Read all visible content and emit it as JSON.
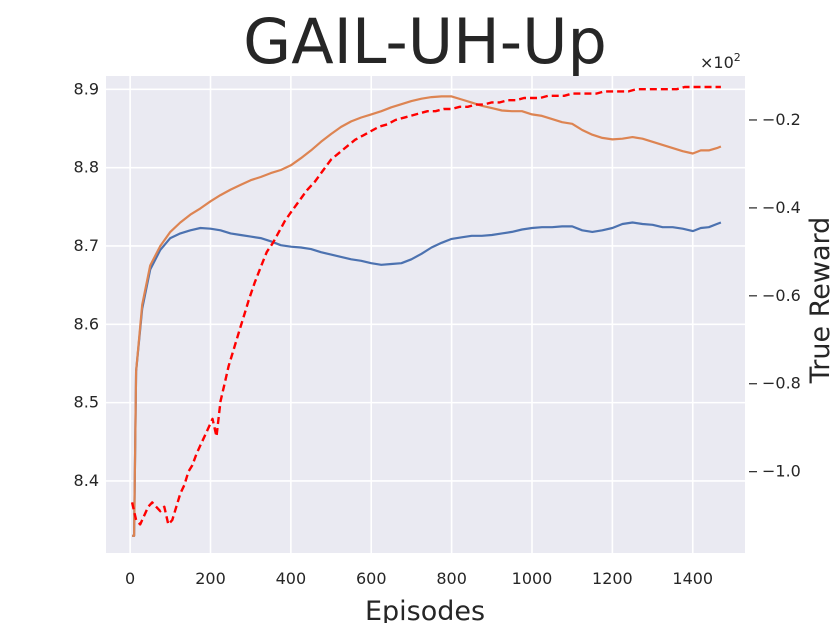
{
  "chart_data": {
    "type": "line",
    "title": "GAIL-UH-Up",
    "xlabel": "Episodes",
    "ylabel": "",
    "y2label": "True Reward",
    "y2_multiplier": "×10",
    "y2_multiplier_exp": "2",
    "xlim": [
      -60,
      1530
    ],
    "ylim": [
      8.308,
      8.917
    ],
    "y2lim": [
      -1.185,
      -0.1
    ],
    "xticks": [
      0,
      200,
      400,
      600,
      800,
      1000,
      1200,
      1400
    ],
    "xtick_labels": [
      "0",
      "200",
      "400",
      "600",
      "800",
      "1000",
      "1200",
      "1400"
    ],
    "yticks": [
      8.4,
      8.5,
      8.6,
      8.7,
      8.8,
      8.9
    ],
    "ytick_labels": [
      "8.4",
      "8.5",
      "8.6",
      "8.7",
      "8.8",
      "8.9"
    ],
    "y2ticks": [
      -1.0,
      -0.8,
      -0.6,
      -0.4,
      -0.2
    ],
    "y2tick_labels": [
      "−1.0",
      "−0.8",
      "−0.6",
      "−0.4",
      "−0.2"
    ],
    "grid": true,
    "colors": {
      "background": "#eaeaf2",
      "grid": "#ffffff",
      "blue": "#4c72b0",
      "orange": "#dd8452",
      "red": "#ff0000"
    },
    "series": [
      {
        "axis": "left",
        "color": "#4c72b0",
        "style": "solid",
        "x": [
          5,
          10,
          15,
          30,
          50,
          75,
          100,
          125,
          150,
          175,
          200,
          225,
          250,
          275,
          300,
          325,
          350,
          375,
          400,
          425,
          450,
          475,
          500,
          525,
          550,
          575,
          600,
          625,
          650,
          675,
          700,
          725,
          750,
          775,
          800,
          825,
          850,
          875,
          900,
          925,
          950,
          975,
          1000,
          1025,
          1050,
          1075,
          1100,
          1125,
          1150,
          1175,
          1200,
          1225,
          1250,
          1275,
          1300,
          1325,
          1350,
          1375,
          1400,
          1420,
          1440,
          1460,
          1470
        ],
        "y": [
          8.33,
          8.33,
          8.54,
          8.62,
          8.67,
          8.695,
          8.71,
          8.716,
          8.72,
          8.723,
          8.722,
          8.72,
          8.716,
          8.714,
          8.712,
          8.71,
          8.706,
          8.701,
          8.699,
          8.698,
          8.696,
          8.692,
          8.689,
          8.686,
          8.683,
          8.681,
          8.678,
          8.676,
          8.677,
          8.678,
          8.683,
          8.69,
          8.698,
          8.704,
          8.709,
          8.711,
          8.713,
          8.713,
          8.714,
          8.716,
          8.718,
          8.721,
          8.723,
          8.724,
          8.724,
          8.725,
          8.725,
          8.72,
          8.718,
          8.72,
          8.723,
          8.728,
          8.73,
          8.728,
          8.727,
          8.724,
          8.724,
          8.722,
          8.719,
          8.723,
          8.724,
          8.728,
          8.73
        ]
      },
      {
        "axis": "left",
        "color": "#dd8452",
        "style": "solid",
        "x": [
          5,
          10,
          15,
          30,
          50,
          75,
          100,
          125,
          150,
          175,
          200,
          225,
          250,
          275,
          300,
          325,
          350,
          375,
          400,
          425,
          450,
          475,
          500,
          525,
          550,
          575,
          600,
          625,
          650,
          675,
          700,
          725,
          750,
          775,
          800,
          825,
          850,
          875,
          900,
          925,
          950,
          975,
          1000,
          1025,
          1050,
          1075,
          1100,
          1125,
          1150,
          1175,
          1200,
          1225,
          1250,
          1275,
          1300,
          1325,
          1350,
          1375,
          1400,
          1420,
          1440,
          1460,
          1470
        ],
        "y": [
          8.33,
          8.33,
          8.54,
          8.625,
          8.675,
          8.7,
          8.718,
          8.73,
          8.74,
          8.748,
          8.757,
          8.765,
          8.772,
          8.778,
          8.784,
          8.788,
          8.793,
          8.797,
          8.803,
          8.812,
          8.822,
          8.833,
          8.843,
          8.852,
          8.859,
          8.864,
          8.868,
          8.872,
          8.877,
          8.881,
          8.885,
          8.888,
          8.89,
          8.891,
          8.891,
          8.887,
          8.883,
          8.879,
          8.876,
          8.873,
          8.872,
          8.872,
          8.868,
          8.866,
          8.862,
          8.858,
          8.856,
          8.848,
          8.842,
          8.838,
          8.836,
          8.837,
          8.839,
          8.837,
          8.833,
          8.829,
          8.825,
          8.821,
          8.818,
          8.822,
          8.822,
          8.825,
          8.827
        ]
      },
      {
        "axis": "right",
        "color": "#ff0000",
        "style": "dashed",
        "x": [
          5,
          15,
          25,
          35,
          45,
          55,
          65,
          75,
          85,
          95,
          105,
          115,
          125,
          135,
          145,
          155,
          165,
          175,
          185,
          195,
          205,
          215,
          225,
          235,
          245,
          255,
          265,
          275,
          285,
          295,
          310,
          325,
          340,
          355,
          370,
          385,
          400,
          420,
          440,
          460,
          480,
          500,
          520,
          540,
          560,
          580,
          600,
          620,
          640,
          660,
          680,
          700,
          720,
          740,
          760,
          780,
          800,
          820,
          840,
          860,
          880,
          900,
          920,
          940,
          960,
          980,
          1000,
          1020,
          1040,
          1060,
          1080,
          1100,
          1120,
          1140,
          1160,
          1180,
          1200,
          1220,
          1240,
          1260,
          1280,
          1300,
          1320,
          1340,
          1360,
          1380,
          1400,
          1420,
          1440,
          1460,
          1470
        ],
        "y": [
          -1.07,
          -1.11,
          -1.12,
          -1.1,
          -1.08,
          -1.07,
          -1.08,
          -1.09,
          -1.08,
          -1.12,
          -1.11,
          -1.08,
          -1.05,
          -1.03,
          -1.0,
          -0.985,
          -0.96,
          -0.94,
          -0.92,
          -0.9,
          -0.88,
          -0.92,
          -0.84,
          -0.8,
          -0.76,
          -0.73,
          -0.7,
          -0.67,
          -0.64,
          -0.61,
          -0.57,
          -0.535,
          -0.5,
          -0.48,
          -0.455,
          -0.43,
          -0.41,
          -0.385,
          -0.36,
          -0.34,
          -0.315,
          -0.29,
          -0.275,
          -0.26,
          -0.245,
          -0.235,
          -0.225,
          -0.215,
          -0.21,
          -0.2,
          -0.195,
          -0.19,
          -0.185,
          -0.18,
          -0.18,
          -0.175,
          -0.175,
          -0.17,
          -0.17,
          -0.165,
          -0.165,
          -0.16,
          -0.16,
          -0.155,
          -0.155,
          -0.15,
          -0.15,
          -0.15,
          -0.145,
          -0.145,
          -0.145,
          -0.14,
          -0.14,
          -0.14,
          -0.14,
          -0.135,
          -0.135,
          -0.135,
          -0.135,
          -0.13,
          -0.13,
          -0.13,
          -0.13,
          -0.13,
          -0.13,
          -0.125,
          -0.125,
          -0.125,
          -0.125,
          -0.125,
          -0.125
        ]
      }
    ]
  }
}
